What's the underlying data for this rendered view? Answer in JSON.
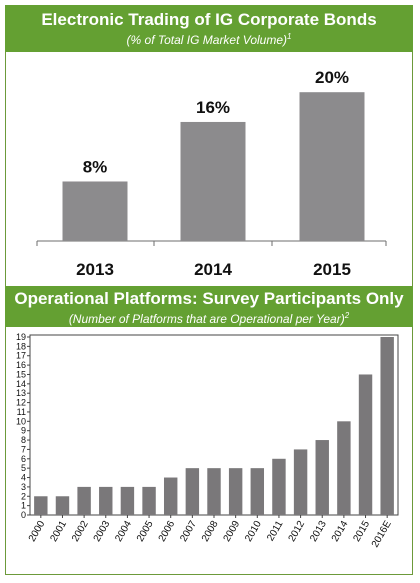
{
  "colors": {
    "banner": "#64a032",
    "bar": "#8c8b8d",
    "bar2": "#7a787a",
    "axis": "#6d6d6d"
  },
  "chart_data": [
    {
      "type": "bar",
      "title": "Electronic Trading of IG Corporate Bonds",
      "subtitle": "(% of Total IG Market Volume)",
      "subtitle_footnote": "1",
      "categories": [
        "2013",
        "2014",
        "2015"
      ],
      "values": [
        8,
        16,
        20
      ],
      "data_labels": [
        "8%",
        "16%",
        "20%"
      ],
      "ylim": [
        0,
        25
      ],
      "grid": false
    },
    {
      "type": "bar",
      "title": "Operational Platforms: Survey Participants Only",
      "subtitle": "(Number of Platforms that are Operational per Year)",
      "subtitle_footnote": "2",
      "categories": [
        "2000",
        "2001",
        "2002",
        "2003",
        "2004",
        "2005",
        "2006",
        "2007",
        "2008",
        "2009",
        "2010",
        "2011",
        "2012",
        "2013",
        "2014",
        "2015",
        "2016E"
      ],
      "values": [
        2,
        2,
        3,
        3,
        3,
        3,
        4,
        5,
        5,
        5,
        5,
        6,
        7,
        8,
        10,
        15,
        19
      ],
      "yticks": [
        "0",
        "1",
        "2",
        "3",
        "4",
        "5",
        "6",
        "7",
        "8",
        "9",
        "10",
        "11",
        "12",
        "13",
        "14",
        "15",
        "16",
        "17",
        "18",
        "19"
      ],
      "ylim": [
        0,
        19
      ],
      "grid": false
    }
  ]
}
